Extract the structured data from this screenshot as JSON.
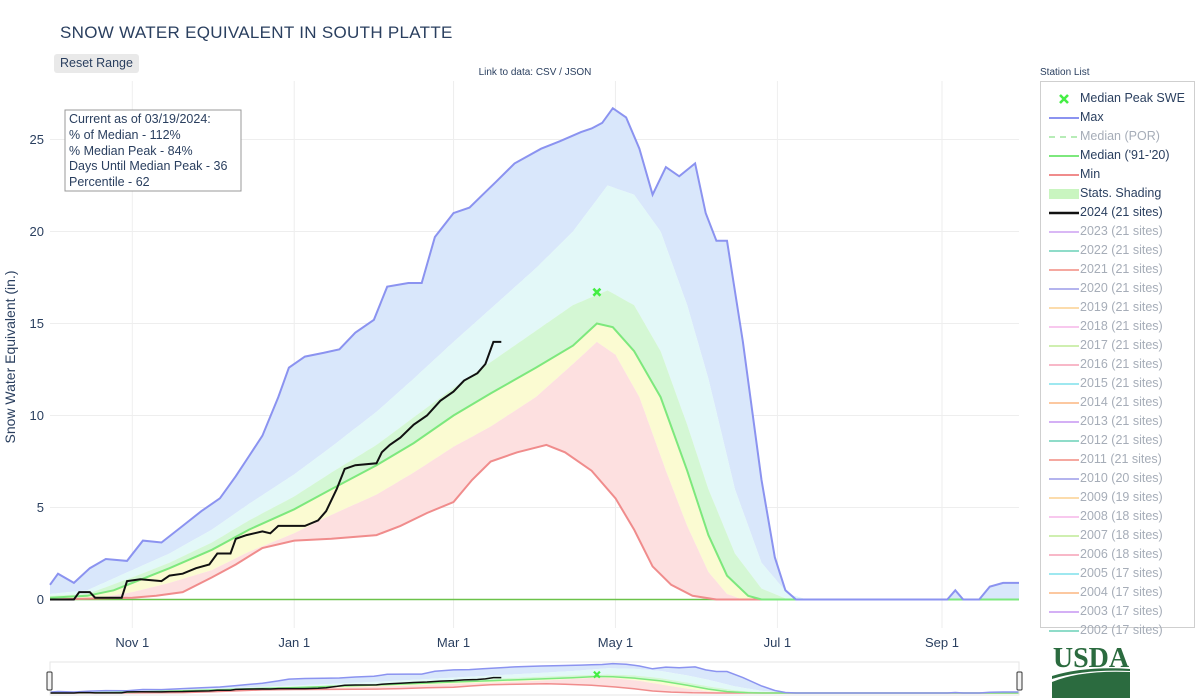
{
  "header": {
    "title": "SNOW WATER EQUIVALENT IN SOUTH PLATTE",
    "reset_label": "Reset Range",
    "data_link": "Link to data: CSV / JSON",
    "station_list": "Station List"
  },
  "stats_box": {
    "line1": "Current as of 03/19/2024:",
    "line2": "% of Median - 112%",
    "line3": "% Median Peak - 84%",
    "line4": "Days Until Median Peak - 36",
    "line5": "Percentile - 62"
  },
  "logo": {
    "text": "USDA"
  },
  "legend": [
    {
      "label": "Median Peak SWE",
      "type": "marker",
      "color": "#44ee44",
      "active": true
    },
    {
      "label": "Max",
      "type": "line",
      "color": "#8b93f0",
      "active": true
    },
    {
      "label": "Median (POR)",
      "type": "dash",
      "color": "#b7ecb7",
      "active": false
    },
    {
      "label": "Median ('91-'20)",
      "type": "line",
      "color": "#7de87d",
      "active": true
    },
    {
      "label": "Min",
      "type": "line",
      "color": "#f08c8c",
      "active": true
    },
    {
      "label": "Stats. Shading",
      "type": "band",
      "color": "#c9f5c0",
      "active": true
    },
    {
      "label": "2024 (21 sites)",
      "type": "bold",
      "color": "#111111",
      "active": true
    },
    {
      "label": "2023 (21 sites)",
      "type": "line",
      "color": "#d9b8f5",
      "active": false
    },
    {
      "label": "2022 (21 sites)",
      "type": "line",
      "color": "#8fdcc9",
      "active": false
    },
    {
      "label": "2021 (21 sites)",
      "type": "line",
      "color": "#f5a8a0",
      "active": false
    },
    {
      "label": "2020 (21 sites)",
      "type": "line",
      "color": "#b4b4ee",
      "active": false
    },
    {
      "label": "2019 (21 sites)",
      "type": "line",
      "color": "#fcdcac",
      "active": false
    },
    {
      "label": "2018 (21 sites)",
      "type": "line",
      "color": "#f8c8ee",
      "active": false
    },
    {
      "label": "2017 (21 sites)",
      "type": "line",
      "color": "#cfefb0",
      "active": false
    },
    {
      "label": "2016 (21 sites)",
      "type": "line",
      "color": "#f8b8c8",
      "active": false
    },
    {
      "label": "2015 (21 sites)",
      "type": "line",
      "color": "#9ee8f0",
      "active": false
    },
    {
      "label": "2014 (21 sites)",
      "type": "line",
      "color": "#fcc8a0",
      "active": false
    },
    {
      "label": "2013 (21 sites)",
      "type": "line",
      "color": "#d4b0f5",
      "active": false
    },
    {
      "label": "2012 (21 sites)",
      "type": "line",
      "color": "#8fdcc9",
      "active": false
    },
    {
      "label": "2011 (21 sites)",
      "type": "line",
      "color": "#f5a8a0",
      "active": false
    },
    {
      "label": "2010 (20 sites)",
      "type": "line",
      "color": "#b4b4ee",
      "active": false
    },
    {
      "label": "2009 (19 sites)",
      "type": "line",
      "color": "#fcdcac",
      "active": false
    },
    {
      "label": "2008 (18 sites)",
      "type": "line",
      "color": "#f8c8ee",
      "active": false
    },
    {
      "label": "2007 (18 sites)",
      "type": "line",
      "color": "#cfefb0",
      "active": false
    },
    {
      "label": "2006 (18 sites)",
      "type": "line",
      "color": "#f8b8c8",
      "active": false
    },
    {
      "label": "2005 (17 sites)",
      "type": "line",
      "color": "#9ee8f0",
      "active": false
    },
    {
      "label": "2004 (17 sites)",
      "type": "line",
      "color": "#fcc8a0",
      "active": false
    },
    {
      "label": "2003 (17 sites)",
      "type": "line",
      "color": "#d4b0f5",
      "active": false
    },
    {
      "label": "2002 (17 sites)",
      "type": "line",
      "color": "#8fdcc9",
      "active": false
    }
  ],
  "chart_data": {
    "type": "line",
    "title": "SNOW WATER EQUIVALENT IN SOUTH PLATTE",
    "ylabel": "Snow Water Equivalent (in.)",
    "xlabel": "",
    "x_tick_labels": [
      "Nov 1",
      "Jan 1",
      "Mar 1",
      "May 1",
      "Jul 1",
      "Sep 1"
    ],
    "x_tick_dates": [
      "11-01",
      "01-01",
      "03-01",
      "05-01",
      "07-01",
      "09-01"
    ],
    "x_range": [
      "10-01",
      "09-30"
    ],
    "ylim": [
      -1.5,
      27.5
    ],
    "y_ticks": [
      0,
      5,
      10,
      15,
      20,
      25
    ],
    "grid": true,
    "colors": {
      "max": "#8b93f0",
      "min": "#f08c8c",
      "median": "#7de87d",
      "current": "#111111",
      "peak_marker": "#44ee44",
      "band_max_p90": "#d9e7fb",
      "band_p90_p70": "#e3f8f8",
      "band_p70_p50": "#d4f7d4",
      "band_p50_p30": "#fbfbd2",
      "band_p30_min": "#fde0e0"
    },
    "median_peak": {
      "date": "04-24",
      "value": 16.7
    },
    "series": [
      {
        "name": "Max",
        "points": [
          [
            "10-01",
            0.8
          ],
          [
            "10-04",
            1.4
          ],
          [
            "10-10",
            0.9
          ],
          [
            "10-16",
            1.7
          ],
          [
            "10-22",
            2.2
          ],
          [
            "10-30",
            2.1
          ],
          [
            "11-05",
            3.2
          ],
          [
            "11-12",
            3.1
          ],
          [
            "11-20",
            4.0
          ],
          [
            "11-27",
            4.8
          ],
          [
            "12-04",
            5.5
          ],
          [
            "12-10",
            6.7
          ],
          [
            "12-15",
            7.8
          ],
          [
            "12-20",
            8.9
          ],
          [
            "12-26",
            11.0
          ],
          [
            "12-30",
            12.6
          ],
          [
            "01-05",
            13.2
          ],
          [
            "01-12",
            13.4
          ],
          [
            "01-18",
            13.6
          ],
          [
            "01-24",
            14.5
          ],
          [
            "01-31",
            15.2
          ],
          [
            "02-05",
            17.0
          ],
          [
            "02-13",
            17.2
          ],
          [
            "02-18",
            17.2
          ],
          [
            "02-23",
            19.7
          ],
          [
            "03-01",
            21.0
          ],
          [
            "03-07",
            21.3
          ],
          [
            "03-12",
            22.0
          ],
          [
            "03-17",
            22.7
          ],
          [
            "03-24",
            23.7
          ],
          [
            "04-03",
            24.5
          ],
          [
            "04-10",
            24.9
          ],
          [
            "04-18",
            25.4
          ],
          [
            "04-22",
            25.6
          ],
          [
            "04-26",
            25.9
          ],
          [
            "04-30",
            26.7
          ],
          [
            "05-05",
            26.2
          ],
          [
            "05-10",
            24.5
          ],
          [
            "05-15",
            22.0
          ],
          [
            "05-20",
            23.5
          ],
          [
            "05-25",
            23.0
          ],
          [
            "05-31",
            23.7
          ],
          [
            "06-04",
            21.0
          ],
          [
            "06-08",
            19.5
          ],
          [
            "06-12",
            19.5
          ],
          [
            "06-18",
            14.0
          ],
          [
            "06-25",
            6.5
          ],
          [
            "06-30",
            2.3
          ],
          [
            "07-04",
            0.5
          ],
          [
            "07-08",
            0.0
          ],
          [
            "08-25",
            0.0
          ],
          [
            "09-03",
            0.0
          ],
          [
            "09-06",
            0.5
          ],
          [
            "09-09",
            0.0
          ],
          [
            "09-15",
            0.0
          ],
          [
            "09-19",
            0.7
          ],
          [
            "09-24",
            0.9
          ],
          [
            "09-30",
            0.9
          ]
        ]
      },
      {
        "name": "P90",
        "points": [
          [
            "10-01",
            0.3
          ],
          [
            "10-15",
            0.5
          ],
          [
            "11-01",
            1.6
          ],
          [
            "11-15",
            2.5
          ],
          [
            "12-01",
            3.8
          ],
          [
            "12-15",
            5.2
          ],
          [
            "01-01",
            6.8
          ],
          [
            "01-15",
            8.3
          ],
          [
            "02-01",
            10.2
          ],
          [
            "02-15",
            12.0
          ],
          [
            "03-01",
            14.0
          ],
          [
            "03-15",
            15.8
          ],
          [
            "04-01",
            18.0
          ],
          [
            "04-15",
            20.0
          ],
          [
            "04-28",
            22.5
          ],
          [
            "05-08",
            22.0
          ],
          [
            "05-18",
            20.0
          ],
          [
            "05-28",
            16.0
          ],
          [
            "06-05",
            12.0
          ],
          [
            "06-15",
            6.0
          ],
          [
            "06-25",
            2.0
          ],
          [
            "07-05",
            0.3
          ],
          [
            "07-12",
            0.0
          ],
          [
            "09-30",
            0.0
          ]
        ]
      },
      {
        "name": "P70",
        "points": [
          [
            "10-01",
            0.2
          ],
          [
            "10-15",
            0.3
          ],
          [
            "11-01",
            1.2
          ],
          [
            "11-15",
            2.0
          ],
          [
            "12-01",
            3.1
          ],
          [
            "12-15",
            4.3
          ],
          [
            "01-01",
            5.6
          ],
          [
            "01-15",
            6.9
          ],
          [
            "02-01",
            8.4
          ],
          [
            "02-15",
            9.9
          ],
          [
            "03-01",
            11.5
          ],
          [
            "03-15",
            12.9
          ],
          [
            "04-01",
            14.6
          ],
          [
            "04-15",
            16.0
          ],
          [
            "04-28",
            16.8
          ],
          [
            "05-08",
            16.0
          ],
          [
            "05-18",
            13.5
          ],
          [
            "05-28",
            9.5
          ],
          [
            "06-05",
            6.0
          ],
          [
            "06-15",
            2.5
          ],
          [
            "06-25",
            0.6
          ],
          [
            "07-05",
            0.0
          ],
          [
            "09-30",
            0.0
          ]
        ]
      },
      {
        "name": "Median ('91-'20)",
        "points": [
          [
            "10-01",
            0.1
          ],
          [
            "10-15",
            0.2
          ],
          [
            "10-25",
            0.5
          ],
          [
            "11-01",
            0.9
          ],
          [
            "11-15",
            1.7
          ],
          [
            "12-01",
            2.7
          ],
          [
            "12-15",
            3.8
          ],
          [
            "01-01",
            4.9
          ],
          [
            "01-15",
            6.0
          ],
          [
            "02-01",
            7.3
          ],
          [
            "02-15",
            8.5
          ],
          [
            "03-01",
            10.0
          ],
          [
            "03-15",
            11.2
          ],
          [
            "04-01",
            12.6
          ],
          [
            "04-15",
            13.8
          ],
          [
            "04-24",
            15.0
          ],
          [
            "04-30",
            14.8
          ],
          [
            "05-08",
            13.5
          ],
          [
            "05-18",
            11.0
          ],
          [
            "05-28",
            7.0
          ],
          [
            "06-05",
            3.5
          ],
          [
            "06-12",
            1.3
          ],
          [
            "06-20",
            0.2
          ],
          [
            "06-25",
            0.0
          ],
          [
            "09-30",
            0.0
          ]
        ]
      },
      {
        "name": "P30",
        "points": [
          [
            "10-01",
            0.0
          ],
          [
            "10-20",
            0.1
          ],
          [
            "11-01",
            0.4
          ],
          [
            "11-15",
            0.9
          ],
          [
            "12-01",
            1.6
          ],
          [
            "12-15",
            2.6
          ],
          [
            "01-01",
            3.6
          ],
          [
            "01-15",
            4.6
          ],
          [
            "02-01",
            5.7
          ],
          [
            "02-15",
            6.9
          ],
          [
            "03-01",
            8.3
          ],
          [
            "03-15",
            9.4
          ],
          [
            "04-01",
            11.0
          ],
          [
            "04-15",
            12.8
          ],
          [
            "04-24",
            14.0
          ],
          [
            "05-01",
            13.3
          ],
          [
            "05-10",
            11.0
          ],
          [
            "05-20",
            7.0
          ],
          [
            "05-28",
            4.0
          ],
          [
            "06-05",
            1.5
          ],
          [
            "06-12",
            0.3
          ],
          [
            "06-18",
            0.0
          ],
          [
            "09-30",
            0.0
          ]
        ]
      },
      {
        "name": "Min",
        "points": [
          [
            "10-01",
            0.0
          ],
          [
            "11-01",
            0.1
          ],
          [
            "11-10",
            0.2
          ],
          [
            "11-20",
            0.4
          ],
          [
            "12-01",
            1.2
          ],
          [
            "12-10",
            1.9
          ],
          [
            "12-20",
            2.8
          ],
          [
            "01-01",
            3.2
          ],
          [
            "01-15",
            3.3
          ],
          [
            "02-01",
            3.5
          ],
          [
            "02-10",
            4.0
          ],
          [
            "02-20",
            4.7
          ],
          [
            "03-01",
            5.3
          ],
          [
            "03-08",
            6.5
          ],
          [
            "03-15",
            7.5
          ],
          [
            "03-25",
            8.0
          ],
          [
            "04-05",
            8.4
          ],
          [
            "04-12",
            8.0
          ],
          [
            "04-22",
            7.0
          ],
          [
            "05-01",
            5.5
          ],
          [
            "05-08",
            3.8
          ],
          [
            "05-15",
            1.8
          ],
          [
            "05-22",
            0.8
          ],
          [
            "05-30",
            0.2
          ],
          [
            "06-08",
            0.0
          ],
          [
            "09-30",
            0.0
          ]
        ]
      },
      {
        "name": "2024 (21 sites)",
        "points": [
          [
            "10-01",
            0.0
          ],
          [
            "10-10",
            0.0
          ],
          [
            "10-12",
            0.4
          ],
          [
            "10-16",
            0.4
          ],
          [
            "10-18",
            0.1
          ],
          [
            "10-28",
            0.1
          ],
          [
            "10-30",
            1.0
          ],
          [
            "11-04",
            1.1
          ],
          [
            "11-12",
            1.0
          ],
          [
            "11-15",
            1.3
          ],
          [
            "11-20",
            1.4
          ],
          [
            "11-25",
            1.7
          ],
          [
            "11-30",
            1.9
          ],
          [
            "12-03",
            2.5
          ],
          [
            "12-08",
            2.5
          ],
          [
            "12-10",
            3.3
          ],
          [
            "12-14",
            3.5
          ],
          [
            "12-20",
            3.7
          ],
          [
            "12-23",
            3.6
          ],
          [
            "12-26",
            4.0
          ],
          [
            "01-05",
            4.0
          ],
          [
            "01-10",
            4.3
          ],
          [
            "01-13",
            4.8
          ],
          [
            "01-17",
            6.0
          ],
          [
            "01-20",
            7.1
          ],
          [
            "01-24",
            7.3
          ],
          [
            "02-01",
            7.4
          ],
          [
            "02-03",
            8.0
          ],
          [
            "02-06",
            8.4
          ],
          [
            "02-10",
            8.8
          ],
          [
            "02-15",
            9.5
          ],
          [
            "02-20",
            10.0
          ],
          [
            "02-25",
            10.8
          ],
          [
            "03-01",
            11.3
          ],
          [
            "03-05",
            11.9
          ],
          [
            "03-10",
            12.3
          ],
          [
            "03-13",
            12.8
          ],
          [
            "03-16",
            14.0
          ],
          [
            "03-19",
            14.0
          ]
        ]
      }
    ]
  }
}
